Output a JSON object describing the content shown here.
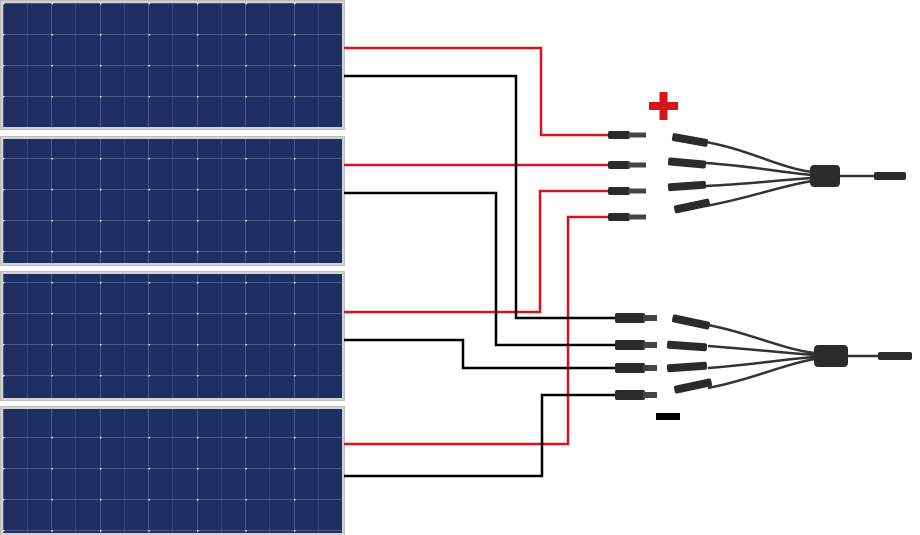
{
  "panels": [
    {
      "id": "panel-1"
    },
    {
      "id": "panel-2"
    },
    {
      "id": "panel-3"
    },
    {
      "id": "panel-4"
    }
  ],
  "colors": {
    "panel_cell": "#1f2f63",
    "panel_frame": "#c8c8c8",
    "positive_wire": "#d6141c",
    "negative_wire": "#000000",
    "connector_body": "#2b2b2b"
  },
  "polarity": {
    "positive_symbol": "+",
    "negative_symbol": "−"
  },
  "branch_connectors": [
    {
      "name": "positive-4-to-1-branch"
    },
    {
      "name": "negative-4-to-1-branch"
    }
  ]
}
